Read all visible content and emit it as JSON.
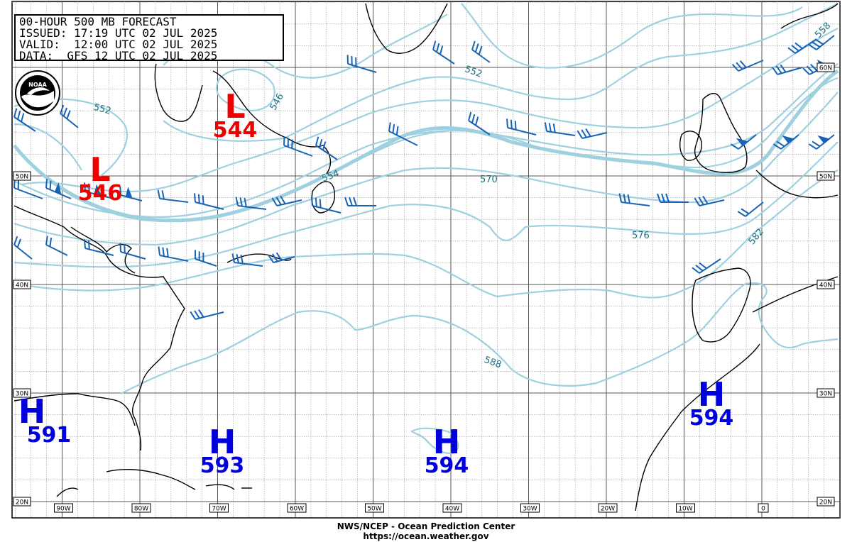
{
  "header": {
    "line1": "00-HOUR 500 MB FORECAST",
    "line2": "ISSUED: 17:19 UTC 02 JUL 2025",
    "line3": "VALID:  12:00 UTC 02 JUL 2025",
    "line4": "DATA:  GFS 12 UTC 02 JUL 2025"
  },
  "logo_text": "NOAA",
  "footer": {
    "line1": "NWS/NCEP - Ocean Prediction Center",
    "line2": "https://ocean.weather.gov"
  },
  "lat_labels": [
    "60N",
    "50N",
    "40N",
    "30N",
    "20N"
  ],
  "lon_labels": [
    "90W",
    "80W",
    "70W",
    "60W",
    "50W",
    "40W",
    "30W",
    "20W",
    "10W",
    "0"
  ],
  "contour_labels": [
    "552",
    "552",
    "546",
    "554",
    "570",
    "576",
    "582",
    "588",
    "558"
  ],
  "systems": {
    "low_1": {
      "letter": "L",
      "value": "544"
    },
    "low_2": {
      "letter": "L",
      "value": "546"
    },
    "high_1": {
      "letter": "H",
      "value": "591"
    },
    "high_2": {
      "letter": "H",
      "value": "593"
    },
    "high_3": {
      "letter": "H",
      "value": "594"
    },
    "high_4": {
      "letter": "H",
      "value": "594"
    }
  },
  "colors": {
    "contour": "#9fd0e0",
    "contour_label": "#1e6f80",
    "wind_barb": "#1763b5",
    "low": "#ee0000",
    "high": "#0000dd",
    "coast": "#000000",
    "grid": "#777777"
  }
}
